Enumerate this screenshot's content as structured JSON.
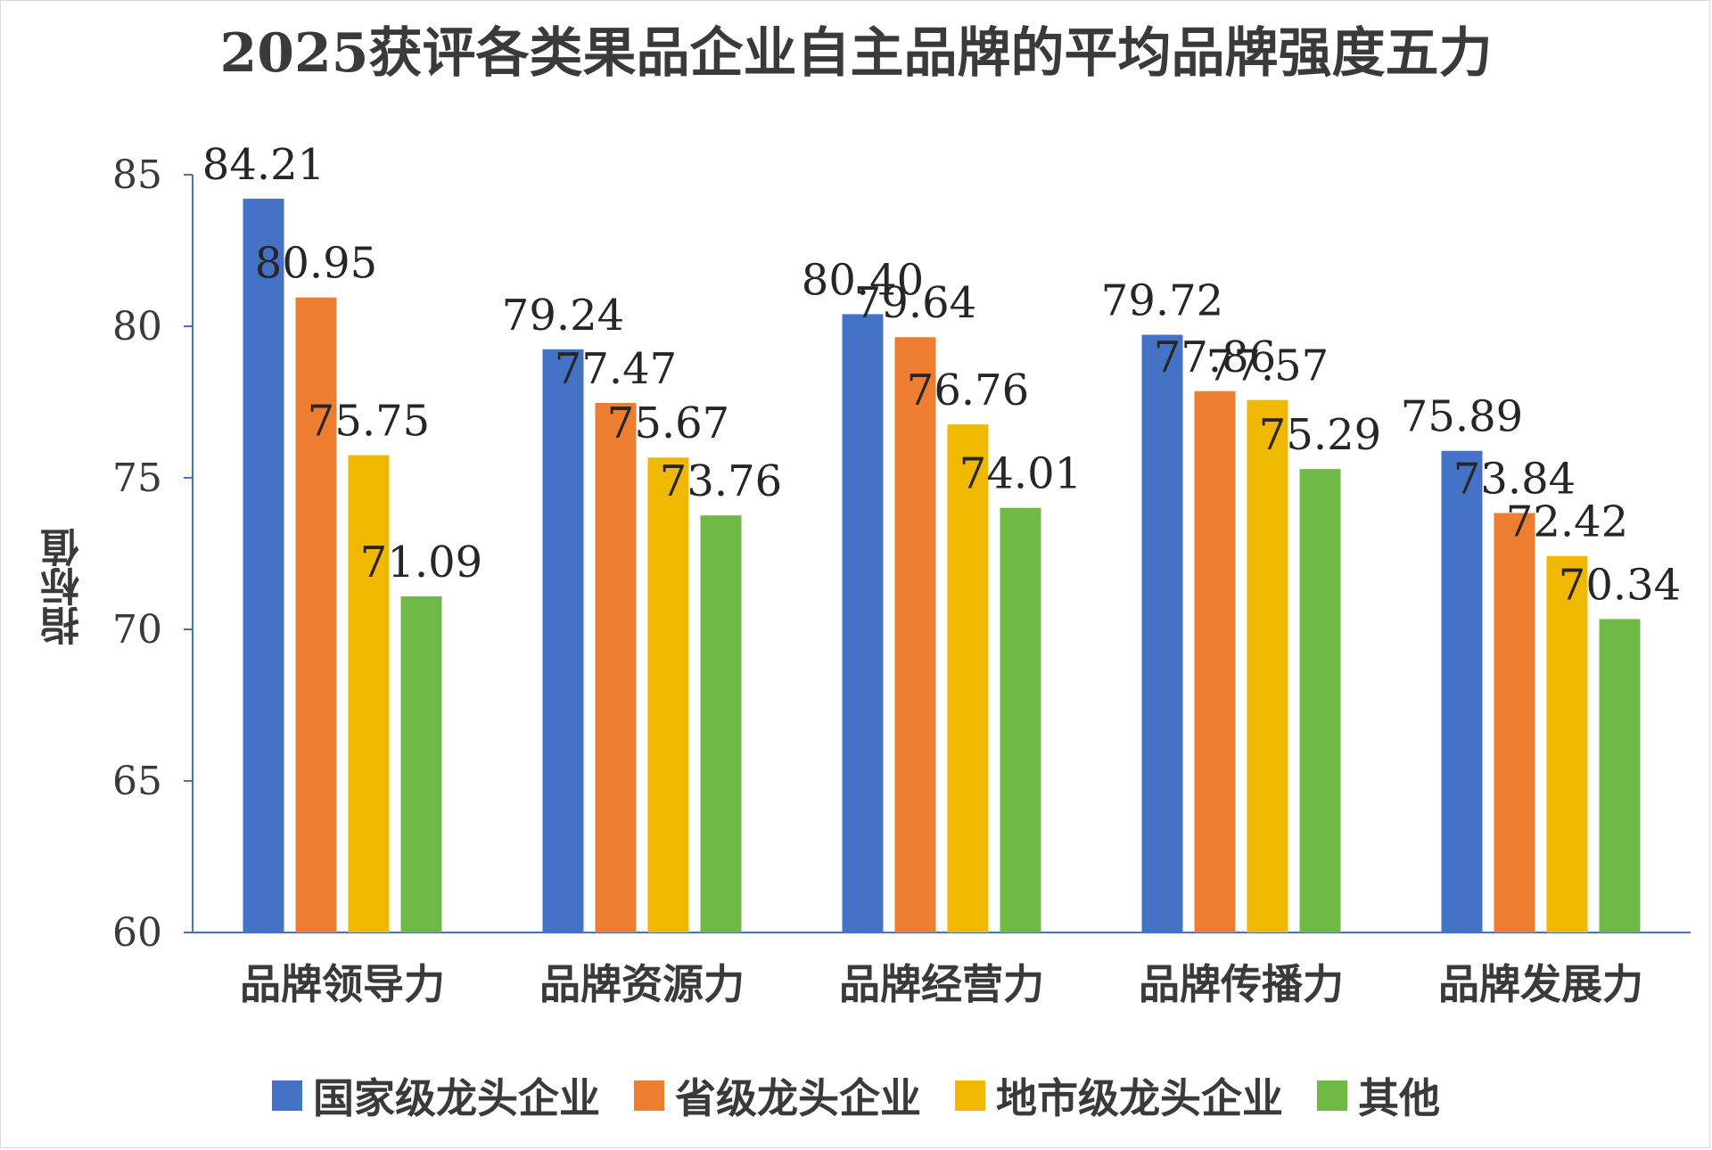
{
  "chart_data": {
    "type": "bar",
    "title": "2025获评各类果品企业自主品牌的平均品牌强度五力",
    "ylabel": "指标值",
    "xlabel": "",
    "ylim": [
      60,
      85
    ],
    "yticks": [
      60,
      65,
      70,
      75,
      80,
      85
    ],
    "grid": false,
    "legend_position": "bottom",
    "categories": [
      "品牌领导力",
      "品牌资源力",
      "品牌经营力",
      "品牌传播力",
      "品牌发展力"
    ],
    "series": [
      {
        "name": "国家级龙头企业",
        "color": "#4472c4",
        "values": [
          84.21,
          79.24,
          80.4,
          79.72,
          75.89
        ],
        "labels": [
          "84.21",
          "79.24",
          "80.40",
          "79.72",
          "75.89"
        ]
      },
      {
        "name": "省级龙头企业",
        "color": "#ed7d31",
        "values": [
          80.95,
          77.47,
          79.64,
          77.86,
          73.84
        ],
        "labels": [
          "80.95",
          "77.47",
          "79.64",
          "77.86",
          "73.84"
        ]
      },
      {
        "name": "地市级龙头企业",
        "color": "#f0b800",
        "values": [
          75.75,
          75.67,
          76.76,
          77.57,
          72.42
        ],
        "labels": [
          "75.75",
          "75.67",
          "76.76",
          "77.57",
          "72.42"
        ]
      },
      {
        "name": "其他",
        "color": "#70b944",
        "values": [
          71.09,
          73.76,
          74.01,
          75.29,
          70.34
        ],
        "labels": [
          "71.09",
          "73.76",
          "74.01",
          "75.29",
          "70.34"
        ]
      }
    ]
  }
}
